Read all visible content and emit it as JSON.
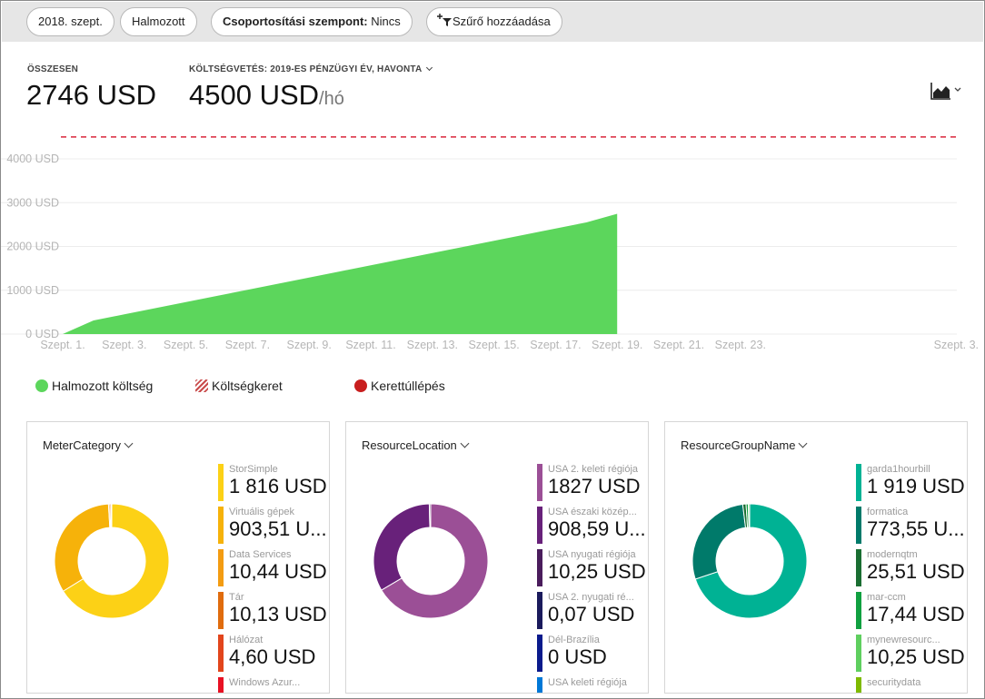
{
  "filters": {
    "period": "2018. szept.",
    "mode": "Halmozott",
    "group_label": "Csoportosítási szempont:",
    "group_value": "Nincs",
    "add_filter": "Szűrő hozzáadása"
  },
  "summary": {
    "total_label": "ÖSSZESEN",
    "total_value": "2746 USD",
    "budget_label": "KÖLTSÉGVETÉS: 2019-ES PÉNZÜGYI ÉV, HAVONTA",
    "budget_value": "4500 USD",
    "budget_unit": "/hó"
  },
  "colors": {
    "area": "#5cd65c",
    "budget_line": "#d9263a",
    "overrun": "#c81e1e"
  },
  "chart_data": {
    "type": "area",
    "x_labels": [
      "Szept. 1.",
      "Szept. 3.",
      "Szept. 5.",
      "Szept. 7.",
      "Szept. 9.",
      "Szept. 11.",
      "Szept. 13.",
      "Szept. 15.",
      "Szept. 17.",
      "Szept. 19.",
      "Szept. 21.",
      "Szept. 23.",
      "Szept. 3."
    ],
    "y_ticks": [
      "0 USD",
      "1000 USD",
      "2000 USD",
      "3000 USD",
      "4000 USD"
    ],
    "ylim": [
      0,
      4000
    ],
    "budget": 4500,
    "series": [
      {
        "name": "Halmozott költség",
        "x": [
          1,
          2,
          3,
          4,
          5,
          6,
          7,
          8,
          9,
          10,
          11,
          12,
          13,
          14,
          15,
          16,
          17,
          18,
          19
        ],
        "values": [
          0,
          310,
          450,
          590,
          730,
          870,
          1010,
          1150,
          1290,
          1430,
          1570,
          1710,
          1850,
          1990,
          2130,
          2270,
          2410,
          2550,
          2746
        ]
      }
    ]
  },
  "legend": [
    {
      "label": "Halmozott költség",
      "marker": "dot",
      "color": "#5cd65c"
    },
    {
      "label": "Költségkeret",
      "marker": "hatch",
      "color": "#c94b4b"
    },
    {
      "label": "Kerettúllépés",
      "marker": "dot",
      "color": "#c81e1e"
    }
  ],
  "cards": [
    {
      "title": "MeterCategory",
      "items": [
        {
          "name": "StorSimple",
          "value": "1 816 USD",
          "color": "#fcd116"
        },
        {
          "name": "Virtuális gépek",
          "value": "903,51 U...",
          "color": "#f6b20a"
        },
        {
          "name": "Data Services",
          "value": "10,44 USD",
          "color": "#f39c12"
        },
        {
          "name": "Tár",
          "value": "10,13 USD",
          "color": "#e06c0e"
        },
        {
          "name": "Hálózat",
          "value": "4,60 USD",
          "color": "#e2451c"
        },
        {
          "name": "Windows Azur...",
          "value": "",
          "color": "#e81123"
        }
      ],
      "slices": [
        66.1,
        32.9,
        0.38,
        0.37,
        0.17
      ]
    },
    {
      "title": "ResourceLocation",
      "items": [
        {
          "name": "USA 2. keleti régiója",
          "value": "1827 USD",
          "color": "#9b4f96"
        },
        {
          "name": "USA északi közép...",
          "value": "908,59 U...",
          "color": "#68217a"
        },
        {
          "name": "USA nyugati régiója",
          "value": "10,25 USD",
          "color": "#4a1c5c"
        },
        {
          "name": "USA 2. nyugati ré...",
          "value": "0,07 USD",
          "color": "#1a1a5c"
        },
        {
          "name": "Dél-Brazília",
          "value": "0 USD",
          "color": "#0a1a8c"
        },
        {
          "name": "USA keleti régiója",
          "value": "",
          "color": "#0078d7"
        }
      ],
      "slices": [
        66.5,
        33.1,
        0.37,
        0.03,
        0.0
      ]
    },
    {
      "title": "ResourceGroupName",
      "items": [
        {
          "name": "garda1hourbill",
          "value": "1 919 USD",
          "color": "#00b294"
        },
        {
          "name": "formatica",
          "value": "773,55 U...",
          "color": "#007a6a"
        },
        {
          "name": "modernqtm",
          "value": "25,51 USD",
          "color": "#1a6e32"
        },
        {
          "name": "mar-ccm",
          "value": "17,44 USD",
          "color": "#10a040"
        },
        {
          "name": "mynewresourc...",
          "value": "10,25 USD",
          "color": "#5fcf5f"
        },
        {
          "name": "securitydata",
          "value": "",
          "color": "#7fba00"
        }
      ],
      "slices": [
        69.9,
        28.2,
        0.93,
        0.64,
        0.37
      ]
    }
  ]
}
